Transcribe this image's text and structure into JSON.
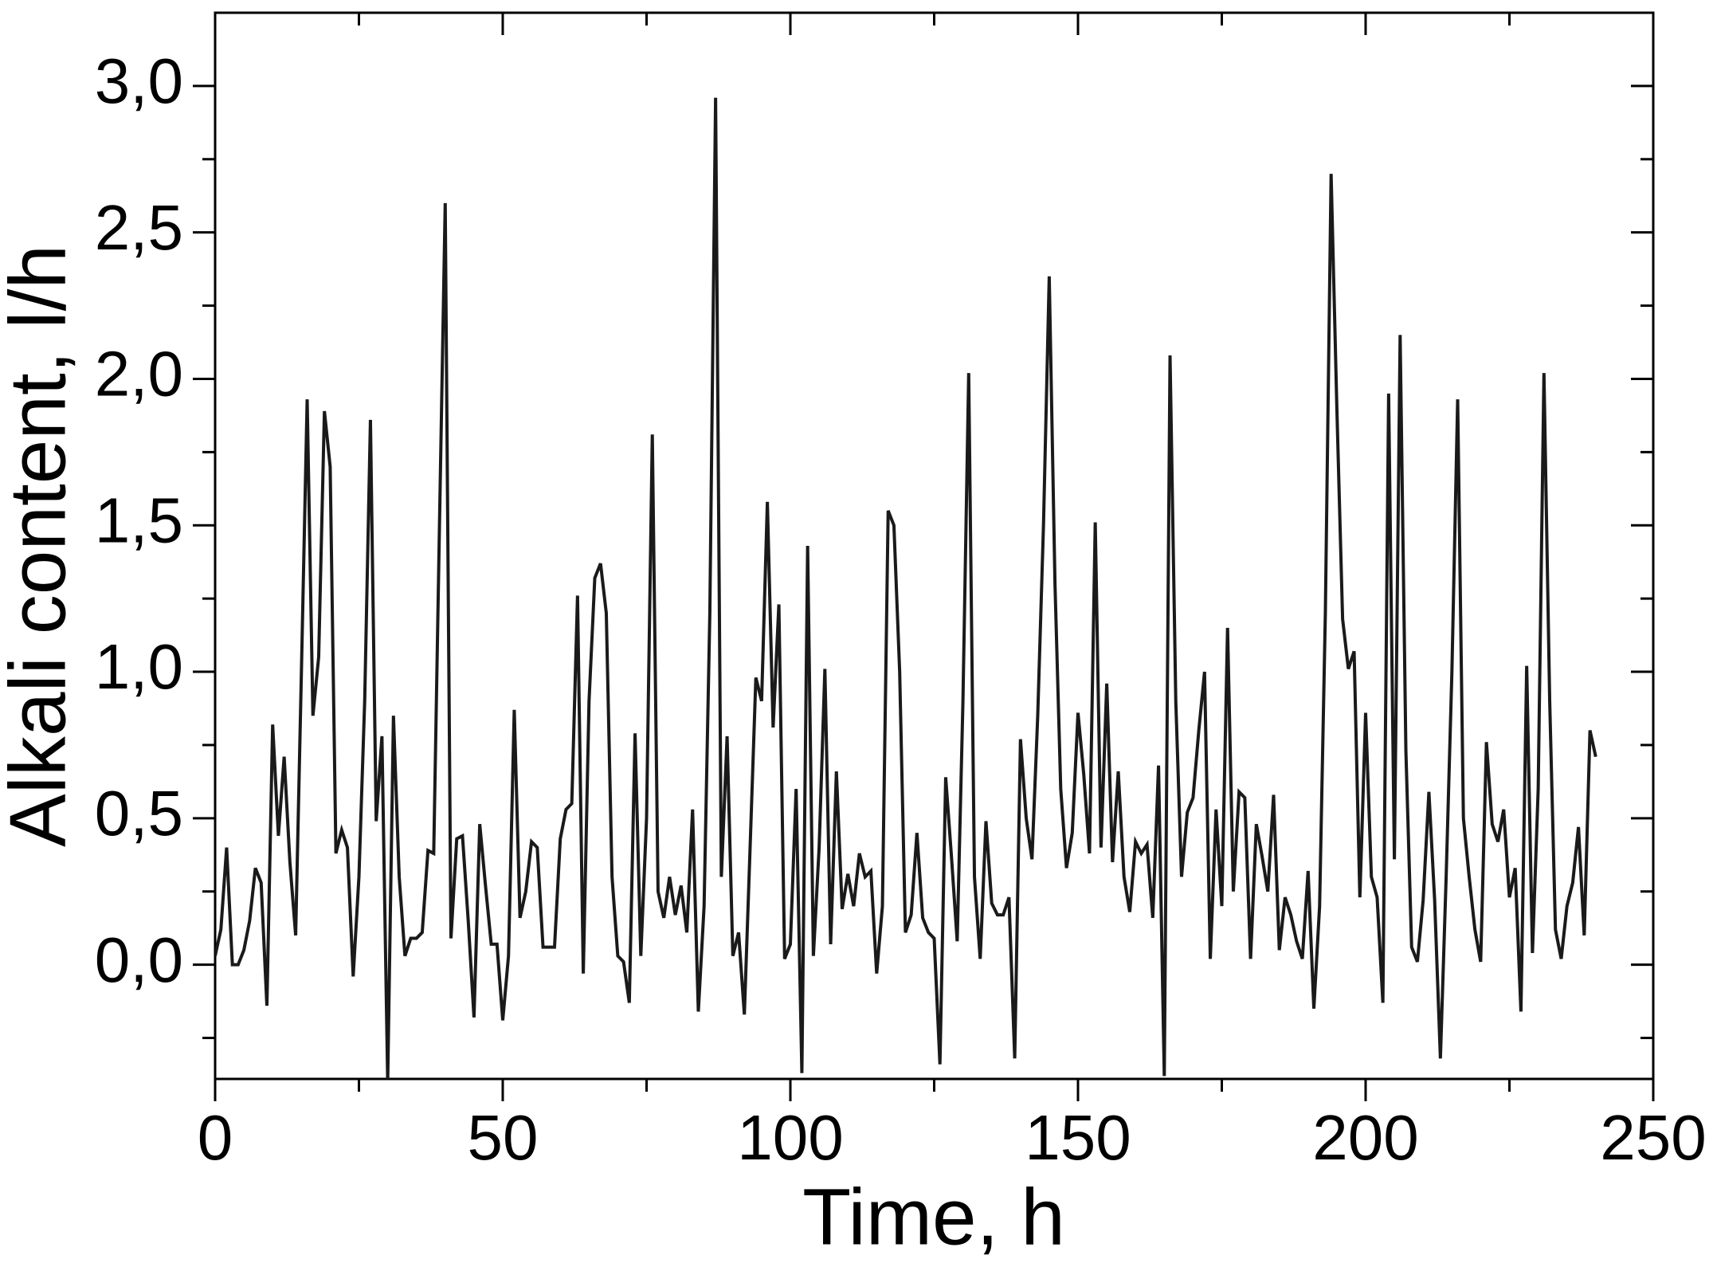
{
  "chart_data": {
    "type": "line",
    "xlabel": "Time, h",
    "ylabel": "Alkali content, l/h",
    "color": "#1a1a1a",
    "xlim": [
      0,
      250
    ],
    "xticks": [
      0,
      50,
      100,
      150,
      200,
      250
    ],
    "xminorticks": [
      25,
      75,
      125,
      175,
      225
    ],
    "ylim": [
      -0.39,
      3.25
    ],
    "yticks": [
      {
        "value": 0,
        "label": "0,0"
      },
      {
        "value": 0.5,
        "label": "0,5"
      },
      {
        "value": 1.0,
        "label": "1,0"
      },
      {
        "value": 1.5,
        "label": "1,5"
      },
      {
        "value": 2.0,
        "label": "2,0"
      },
      {
        "value": 2.5,
        "label": "2,5"
      },
      {
        "value": 3.0,
        "label": "3,0"
      }
    ],
    "yminorticks": [
      -0.25,
      0.25,
      0.75,
      1.25,
      1.75,
      2.25,
      2.75
    ],
    "x": [
      0,
      1,
      2,
      3,
      4,
      5,
      6,
      7,
      8,
      9,
      10,
      11,
      12,
      13,
      14,
      15,
      16,
      17,
      18,
      19,
      20,
      21,
      22,
      23,
      24,
      25,
      26,
      27,
      28,
      29,
      30,
      31,
      32,
      33,
      34,
      35,
      36,
      37,
      38,
      39,
      40,
      41,
      42,
      43,
      44,
      45,
      46,
      47,
      48,
      49,
      50,
      51,
      52,
      53,
      54,
      55,
      56,
      57,
      58,
      59,
      60,
      61,
      62,
      63,
      64,
      65,
      66,
      67,
      68,
      69,
      70,
      71,
      72,
      73,
      74,
      75,
      76,
      77,
      78,
      79,
      80,
      81,
      82,
      83,
      84,
      85,
      86,
      87,
      88,
      89,
      90,
      91,
      92,
      93,
      94,
      95,
      96,
      97,
      98,
      99,
      100,
      101,
      102,
      103,
      104,
      105,
      106,
      107,
      108,
      109,
      110,
      111,
      112,
      113,
      114,
      115,
      116,
      117,
      118,
      119,
      120,
      121,
      122,
      123,
      124,
      125,
      126,
      127,
      128,
      129,
      130,
      131,
      132,
      133,
      134,
      135,
      136,
      137,
      138,
      139,
      140,
      141,
      142,
      143,
      144,
      145,
      146,
      147,
      148,
      149,
      150,
      151,
      152,
      153,
      154,
      155,
      156,
      157,
      158,
      159,
      160,
      161,
      162,
      163,
      164,
      165,
      166,
      167,
      168,
      169,
      170,
      171,
      172,
      173,
      174,
      175,
      176,
      177,
      178,
      179,
      180,
      181,
      182,
      183,
      184,
      185,
      186,
      187,
      188,
      189,
      190,
      191,
      192,
      193,
      194,
      195,
      196,
      197,
      198,
      199,
      200,
      201,
      202,
      203,
      204,
      205,
      206,
      207,
      208,
      209,
      210,
      211,
      212,
      213,
      214,
      215,
      216,
      217,
      218,
      219,
      220,
      221,
      222,
      223,
      224,
      225,
      226,
      227,
      228,
      229,
      230,
      231,
      232,
      233,
      234,
      235,
      236,
      237,
      238,
      239,
      240
    ],
    "values": [
      0.03,
      0.12,
      0.4,
      0,
      0,
      0.05,
      0.15,
      0.33,
      0.28,
      -0.14,
      0.82,
      0.44,
      0.71,
      0.35,
      0.1,
      1.0,
      1.93,
      0.85,
      1.05,
      1.89,
      1.7,
      0.38,
      0.46,
      0.4,
      -0.04,
      0.3,
      0.9,
      1.86,
      0.49,
      0.78,
      -0.4,
      0.85,
      0.3,
      0.03,
      0.09,
      0.09,
      0.11,
      0.39,
      0.38,
      1.5,
      2.6,
      0.09,
      0.43,
      0.44,
      0.15,
      -0.18,
      0.48,
      0.27,
      0.07,
      0.07,
      -0.19,
      0.03,
      0.87,
      0.16,
      0.25,
      0.42,
      0.4,
      0.06,
      0.06,
      0.06,
      0.43,
      0.53,
      0.55,
      1.26,
      -0.03,
      0.9,
      1.32,
      1.37,
      1.2,
      0.3,
      0.03,
      0.01,
      -0.13,
      0.79,
      0.03,
      0.5,
      1.81,
      0.25,
      0.16,
      0.3,
      0.17,
      0.27,
      0.11,
      0.53,
      -0.16,
      0.2,
      1.2,
      2.96,
      0.3,
      0.78,
      0.03,
      0.11,
      -0.17,
      0.4,
      0.98,
      0.9,
      1.58,
      0.81,
      1.23,
      0.02,
      0.07,
      0.6,
      -0.37,
      1.43,
      0.03,
      0.4,
      1.01,
      0.07,
      0.66,
      0.19,
      0.31,
      0.2,
      0.38,
      0.3,
      0.32,
      -0.03,
      0.2,
      1.55,
      1.5,
      1.0,
      0.11,
      0.17,
      0.45,
      0.16,
      0.11,
      0.09,
      -0.34,
      0.64,
      0.37,
      0.08,
      0.9,
      2.02,
      0.3,
      0.02,
      0.49,
      0.21,
      0.17,
      0.17,
      0.23,
      -0.32,
      0.77,
      0.5,
      0.36,
      0.85,
      1.5,
      2.35,
      1.3,
      0.6,
      0.33,
      0.45,
      0.86,
      0.65,
      0.38,
      1.51,
      0.4,
      0.96,
      0.35,
      0.66,
      0.3,
      0.18,
      0.42,
      0.38,
      0.41,
      0.16,
      0.68,
      -0.38,
      2.08,
      0.9,
      0.3,
      0.52,
      0.57,
      0.8,
      1.0,
      0.02,
      0.53,
      0.2,
      1.15,
      0.25,
      0.59,
      0.57,
      0.02,
      0.48,
      0.37,
      0.25,
      0.58,
      0.05,
      0.23,
      0.17,
      0.08,
      0.02,
      0.32,
      -0.15,
      0.2,
      1.2,
      2.7,
      1.9,
      1.18,
      1.01,
      1.07,
      0.23,
      0.86,
      0.3,
      0.23,
      -0.13,
      1.95,
      0.36,
      2.15,
      0.73,
      0.06,
      0.01,
      0.22,
      0.59,
      0.22,
      -0.32,
      0.3,
      1.0,
      1.93,
      0.5,
      0.3,
      0.12,
      0.01,
      0.76,
      0.48,
      0.42,
      0.53,
      0.23,
      0.33,
      -0.16,
      1.02,
      0.04,
      0.6,
      2.02,
      0.9,
      0.12,
      0.02,
      0.2,
      0.28,
      0.47,
      0.1,
      0.8,
      0.71
    ]
  }
}
